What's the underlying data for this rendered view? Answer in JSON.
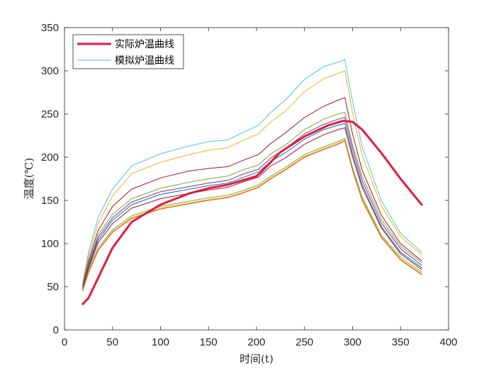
{
  "chart_data": {
    "type": "line",
    "xlabel": "时间(t)",
    "ylabel": "温度(℃)",
    "xlim": [
      0,
      400
    ],
    "ylim": [
      0,
      350
    ],
    "xticks": [
      0,
      50,
      100,
      150,
      200,
      250,
      300,
      350,
      400
    ],
    "yticks": [
      0,
      50,
      100,
      150,
      200,
      250,
      300,
      350
    ],
    "grid": false,
    "legend_position": "top-left",
    "legend": [
      {
        "label": "实际炉温曲线",
        "color": "#e6193c"
      },
      {
        "label": "模拟炉温曲线",
        "color": "#4dbeee"
      }
    ],
    "series": [
      {
        "name": "实际炉温曲线",
        "color": "#e6193c",
        "width": 3,
        "x": [
          19,
          25,
          35,
          50,
          70,
          100,
          130,
          150,
          170,
          185,
          200,
          205,
          225,
          250,
          275,
          290,
          300,
          310,
          330,
          350,
          372
        ],
        "y": [
          30,
          37,
          60,
          95,
          125,
          145,
          158,
          164,
          168,
          173,
          178,
          183,
          206,
          224,
          237,
          242,
          241,
          232,
          205,
          175,
          145
        ]
      },
      {
        "color": "#4dbeee",
        "width": 1,
        "x": [
          19,
          25,
          35,
          50,
          70,
          100,
          130,
          150,
          170,
          185,
          202,
          215,
          230,
          250,
          270,
          285,
          292,
          300,
          310,
          330,
          350,
          372
        ],
        "y": [
          55,
          90,
          130,
          163,
          190,
          204,
          213,
          218,
          220,
          228,
          237,
          252,
          266,
          290,
          305,
          310,
          313,
          265,
          212,
          150,
          112,
          90
        ]
      },
      {
        "color": "#edb120",
        "width": 1,
        "x": [
          19,
          25,
          35,
          50,
          70,
          100,
          130,
          150,
          170,
          185,
          202,
          215,
          230,
          250,
          270,
          285,
          292,
          300,
          310,
          330,
          350,
          372
        ],
        "y": [
          53,
          85,
          123,
          155,
          181,
          194,
          203,
          208,
          211,
          219,
          227,
          241,
          253,
          276,
          291,
          297,
          300,
          252,
          202,
          144,
          108,
          87
        ]
      },
      {
        "color": "#a2142f",
        "width": 1,
        "x": [
          19,
          25,
          35,
          50,
          70,
          100,
          130,
          150,
          170,
          185,
          202,
          215,
          230,
          250,
          270,
          285,
          292,
          300,
          310,
          330,
          350,
          372
        ],
        "y": [
          51,
          80,
          115,
          143,
          163,
          176,
          184,
          187,
          189,
          196,
          203,
          216,
          228,
          246,
          259,
          266,
          269,
          227,
          185,
          133,
          100,
          80
        ]
      },
      {
        "color": "#77ac30",
        "width": 1,
        "x": [
          19,
          25,
          35,
          50,
          70,
          100,
          130,
          150,
          170,
          185,
          202,
          215,
          230,
          250,
          270,
          285,
          292,
          300,
          310,
          330,
          350,
          372
        ],
        "y": [
          50,
          77,
          110,
          134,
          152,
          164,
          171,
          175,
          178,
          185,
          191,
          204,
          214,
          232,
          244,
          250,
          252,
          215,
          178,
          128,
          97,
          78
        ]
      },
      {
        "color": "#7e2f8e",
        "width": 1,
        "x": [
          19,
          25,
          35,
          50,
          70,
          100,
          130,
          150,
          170,
          185,
          202,
          215,
          230,
          250,
          270,
          285,
          292,
          300,
          310,
          330,
          350,
          372
        ],
        "y": [
          50,
          75,
          107,
          130,
          148,
          160,
          166,
          170,
          173,
          180,
          186,
          199,
          210,
          227,
          238,
          244,
          246,
          210,
          173,
          124,
          94,
          75
        ]
      },
      {
        "color": "#0072bd",
        "width": 1,
        "x": [
          19,
          25,
          35,
          50,
          70,
          100,
          130,
          150,
          170,
          185,
          202,
          215,
          230,
          250,
          270,
          285,
          292,
          300,
          310,
          330,
          350,
          372
        ],
        "y": [
          49,
          73,
          104,
          127,
          145,
          157,
          163,
          167,
          170,
          176,
          183,
          195,
          205,
          221,
          232,
          237,
          239,
          204,
          168,
          120,
          90,
          72
        ]
      },
      {
        "color": "#a2142f",
        "width": 1,
        "x": [
          19,
          25,
          35,
          50,
          70,
          100,
          130,
          150,
          170,
          185,
          202,
          215,
          230,
          250,
          270,
          285,
          292,
          300,
          310,
          330,
          350,
          372
        ],
        "y": [
          48,
          71,
          101,
          123,
          141,
          152,
          158,
          162,
          165,
          171,
          177,
          190,
          199,
          215,
          226,
          232,
          234,
          200,
          165,
          118,
          88,
          70
        ]
      },
      {
        "color": "#77ac30",
        "width": 1,
        "x": [
          19,
          25,
          35,
          50,
          70,
          100,
          130,
          150,
          170,
          185,
          202,
          215,
          230,
          250,
          270,
          285,
          292,
          300,
          310,
          330,
          350,
          372
        ],
        "y": [
          47,
          68,
          95,
          116,
          132,
          143,
          149,
          153,
          156,
          161,
          168,
          178,
          188,
          203,
          212,
          218,
          222,
          188,
          154,
          110,
          84,
          67
        ]
      },
      {
        "color": "#edb120",
        "width": 1,
        "x": [
          19,
          25,
          35,
          50,
          70,
          100,
          130,
          150,
          170,
          185,
          202,
          215,
          230,
          250,
          270,
          285,
          292,
          300,
          310,
          330,
          350,
          372
        ],
        "y": [
          46,
          67,
          93,
          114,
          130,
          141,
          147,
          151,
          154,
          159,
          166,
          176,
          186,
          201,
          210,
          216,
          220,
          186,
          152,
          108,
          82,
          65
        ]
      },
      {
        "color": "#d95319",
        "width": 1,
        "x": [
          19,
          25,
          35,
          50,
          70,
          100,
          130,
          150,
          170,
          185,
          202,
          215,
          230,
          250,
          270,
          285,
          292,
          300,
          310,
          330,
          350,
          372
        ],
        "y": [
          45,
          66,
          92,
          113,
          129,
          140,
          146,
          150,
          153,
          158,
          165,
          175,
          185,
          200,
          209,
          215,
          219,
          185,
          150,
          107,
          81,
          64
        ]
      }
    ]
  }
}
